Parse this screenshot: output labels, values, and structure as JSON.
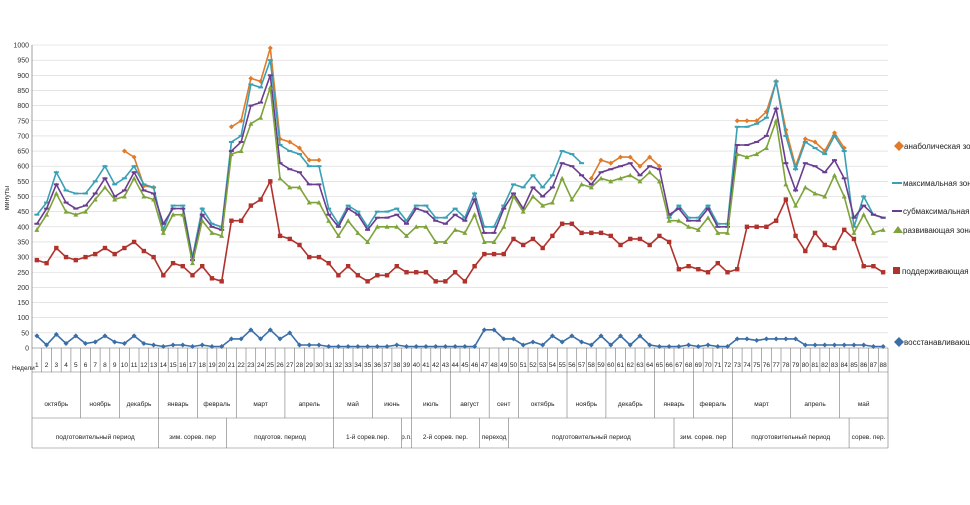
{
  "chart_data": {
    "type": "line",
    "ylabel": "минуты",
    "xlabel_prefix": "Недели",
    "ylim": [
      0,
      1000
    ],
    "yticks": [
      0,
      50,
      100,
      150,
      200,
      250,
      300,
      350,
      400,
      450,
      500,
      550,
      600,
      650,
      700,
      750,
      800,
      850,
      900,
      950,
      1000
    ],
    "grid": true,
    "legend_position": "right",
    "weeks": [
      "1",
      "2",
      "3",
      "4",
      "5",
      "6",
      "7",
      "8",
      "9",
      "10",
      "11",
      "12",
      "13",
      "14",
      "15",
      "16",
      "17",
      "18",
      "19",
      "20",
      "21",
      "22",
      "23",
      "24",
      "25",
      "26",
      "27",
      "28",
      "29",
      "30",
      "31",
      "32",
      "33",
      "34",
      "35",
      "36",
      "37",
      "38",
      "39",
      "40",
      "41",
      "42",
      "43",
      "44",
      "45",
      "46",
      "47",
      "48",
      "49",
      "50",
      "51",
      "52",
      "53",
      "54",
      "55",
      "56",
      "57",
      "58",
      "59",
      "60",
      "61",
      "62",
      "63",
      "64",
      "65",
      "66",
      "67",
      "68",
      "69",
      "70",
      "71",
      "72",
      "73",
      "74",
      "75",
      "76",
      "77",
      "78",
      "79",
      "80",
      "81",
      "82",
      "83",
      "84",
      "85",
      "86",
      "87",
      "88"
    ],
    "months": [
      {
        "label": "октябрь",
        "from": 1,
        "to": 5
      },
      {
        "label": "ноябрь",
        "from": 6,
        "to": 9
      },
      {
        "label": "декабрь",
        "from": 10,
        "to": 13
      },
      {
        "label": "январь",
        "from": 14,
        "to": 17
      },
      {
        "label": "февраль",
        "from": 18,
        "to": 21
      },
      {
        "label": "март",
        "from": 22,
        "to": 26
      },
      {
        "label": "апрель",
        "from": 27,
        "to": 31
      },
      {
        "label": "май",
        "from": 32,
        "to": 35
      },
      {
        "label": "июнь",
        "from": 36,
        "to": 39
      },
      {
        "label": "июль",
        "from": 40,
        "to": 43
      },
      {
        "label": "август",
        "from": 44,
        "to": 47
      },
      {
        "label": "сент",
        "from": 48,
        "to": 50
      },
      {
        "label": "октябрь",
        "from": 51,
        "to": 55
      },
      {
        "label": "ноябрь",
        "from": 56,
        "to": 59
      },
      {
        "label": "декабрь",
        "from": 60,
        "to": 64
      },
      {
        "label": "январь",
        "from": 65,
        "to": 68
      },
      {
        "label": "февраль",
        "from": 69,
        "to": 72
      },
      {
        "label": "март",
        "from": 73,
        "to": 78
      },
      {
        "label": "апрель",
        "from": 79,
        "to": 83
      },
      {
        "label": "май",
        "from": 84,
        "to": 88
      }
    ],
    "periods": [
      {
        "label": "подготовительный период",
        "from": 1,
        "to": 13
      },
      {
        "label": "зим. сорев. пер",
        "from": 14,
        "to": 20
      },
      {
        "label": "подготов. период",
        "from": 21,
        "to": 31
      },
      {
        "label": "1-й сорев.пер.",
        "from": 32,
        "to": 38
      },
      {
        "label": "р.п.",
        "from": 39,
        "to": 39
      },
      {
        "label": "2-й сорев. пер.",
        "from": 40,
        "to": 46
      },
      {
        "label": "переход",
        "from": 47,
        "to": 49
      },
      {
        "label": "подготовительный период",
        "from": 50,
        "to": 66
      },
      {
        "label": "зим. сорев. пер",
        "from": 67,
        "to": 72
      },
      {
        "label": "подготовительный период",
        "from": 73,
        "to": 84
      },
      {
        "label": "сорев. пер.",
        "from": 85,
        "to": 88
      }
    ],
    "series": [
      {
        "name": "анаболическая зона",
        "color": "#e07b2a",
        "marker": "diamond",
        "values": [
          null,
          null,
          null,
          null,
          null,
          null,
          null,
          null,
          null,
          650,
          630,
          535,
          530,
          null,
          null,
          null,
          null,
          null,
          null,
          null,
          730,
          750,
          890,
          880,
          990,
          690,
          680,
          660,
          620,
          620,
          null,
          null,
          null,
          null,
          null,
          null,
          null,
          null,
          null,
          null,
          null,
          null,
          null,
          null,
          null,
          null,
          null,
          null,
          null,
          null,
          null,
          null,
          null,
          null,
          null,
          null,
          null,
          560,
          620,
          610,
          630,
          630,
          600,
          630,
          600,
          null,
          null,
          null,
          null,
          null,
          null,
          null,
          750,
          750,
          750,
          780,
          880,
          720,
          600,
          690,
          680,
          650,
          710,
          660,
          null,
          null,
          null,
          null
        ]
      },
      {
        "name": "максимальная зона",
        "color": "#3aa0b5",
        "marker": "dash",
        "values": [
          440,
          480,
          580,
          520,
          510,
          510,
          550,
          600,
          540,
          560,
          600,
          540,
          530,
          390,
          470,
          470,
          300,
          460,
          410,
          400,
          680,
          700,
          870,
          860,
          950,
          670,
          650,
          640,
          600,
          600,
          460,
          410,
          470,
          450,
          400,
          450,
          450,
          460,
          420,
          470,
          470,
          430,
          430,
          460,
          430,
          510,
          400,
          400,
          470,
          540,
          530,
          570,
          530,
          570,
          650,
          640,
          610,
          null,
          null,
          null,
          null,
          null,
          null,
          null,
          null,
          430,
          470,
          430,
          430,
          470,
          410,
          410,
          730,
          730,
          740,
          760,
          880,
          700,
          590,
          680,
          660,
          640,
          700,
          650,
          400,
          500,
          440,
          430
        ]
      },
      {
        "name": "субмаксимальная зона",
        "color": "#6a3d8e",
        "marker": "dash",
        "values": [
          410,
          460,
          540,
          480,
          460,
          470,
          510,
          560,
          500,
          520,
          580,
          520,
          510,
          410,
          460,
          460,
          290,
          440,
          400,
          390,
          650,
          680,
          800,
          810,
          900,
          610,
          590,
          580,
          540,
          540,
          440,
          400,
          460,
          440,
          390,
          430,
          430,
          440,
          410,
          460,
          450,
          420,
          410,
          440,
          420,
          490,
          380,
          380,
          460,
          510,
          460,
          530,
          500,
          530,
          610,
          600,
          570,
          540,
          580,
          590,
          600,
          610,
          570,
          600,
          590,
          440,
          460,
          420,
          420,
          460,
          400,
          400,
          670,
          670,
          680,
          700,
          790,
          610,
          520,
          610,
          600,
          580,
          620,
          560,
          430,
          470,
          440,
          430
        ]
      },
      {
        "name": "развивающая зона",
        "color": "#7da33a",
        "marker": "triangle",
        "values": [
          390,
          440,
          510,
          450,
          440,
          450,
          490,
          530,
          490,
          500,
          560,
          500,
          490,
          380,
          440,
          440,
          280,
          420,
          380,
          370,
          640,
          650,
          740,
          760,
          860,
          560,
          530,
          530,
          480,
          480,
          420,
          370,
          420,
          380,
          350,
          400,
          400,
          400,
          370,
          400,
          400,
          350,
          350,
          390,
          380,
          440,
          350,
          350,
          400,
          500,
          450,
          500,
          470,
          480,
          560,
          490,
          540,
          530,
          560,
          550,
          560,
          570,
          550,
          580,
          550,
          420,
          420,
          400,
          390,
          430,
          380,
          380,
          640,
          630,
          640,
          660,
          750,
          540,
          470,
          530,
          510,
          500,
          570,
          500,
          380,
          440,
          380,
          390
        ]
      },
      {
        "name": "поддерживающая зона",
        "color": "#b0322c",
        "marker": "square",
        "values": [
          290,
          280,
          330,
          300,
          290,
          300,
          310,
          330,
          310,
          330,
          350,
          320,
          300,
          240,
          280,
          270,
          240,
          270,
          230,
          220,
          420,
          420,
          470,
          490,
          550,
          370,
          360,
          340,
          300,
          300,
          280,
          240,
          270,
          240,
          220,
          240,
          240,
          270,
          250,
          250,
          250,
          220,
          220,
          250,
          220,
          270,
          310,
          310,
          310,
          360,
          340,
          360,
          330,
          370,
          410,
          410,
          380,
          380,
          380,
          370,
          340,
          360,
          360,
          340,
          370,
          350,
          260,
          270,
          260,
          250,
          280,
          250,
          260,
          400,
          400,
          400,
          420,
          490,
          370,
          320,
          380,
          340,
          330,
          390,
          360,
          270,
          270,
          250
        ]
      },
      {
        "name": "восстанавливающая зона",
        "color": "#3a6ea8",
        "marker": "diamond",
        "values": [
          40,
          10,
          45,
          15,
          40,
          15,
          20,
          40,
          20,
          15,
          40,
          15,
          10,
          5,
          10,
          10,
          5,
          10,
          5,
          5,
          30,
          30,
          60,
          30,
          60,
          30,
          50,
          10,
          10,
          10,
          5,
          5,
          5,
          5,
          5,
          5,
          5,
          10,
          5,
          5,
          5,
          5,
          5,
          5,
          5,
          5,
          60,
          60,
          30,
          30,
          10,
          20,
          10,
          40,
          20,
          40,
          20,
          10,
          40,
          10,
          40,
          10,
          40,
          10,
          5,
          5,
          5,
          10,
          5,
          10,
          5,
          5,
          30,
          30,
          25,
          30,
          30,
          30,
          30,
          10,
          10,
          10,
          10,
          10,
          10,
          10,
          5,
          5
        ]
      }
    ]
  },
  "legend_labels": {
    "s0": "анаболическая зона",
    "s1": "максимальная зона",
    "s2": "субмаксимальная зона",
    "s3": "развивающая зона",
    "s4": "поддерживающая зона",
    "s5": "восстанавливающая зона"
  },
  "axis": {
    "ylabel": "минуты",
    "weeks_label": "Недели"
  }
}
